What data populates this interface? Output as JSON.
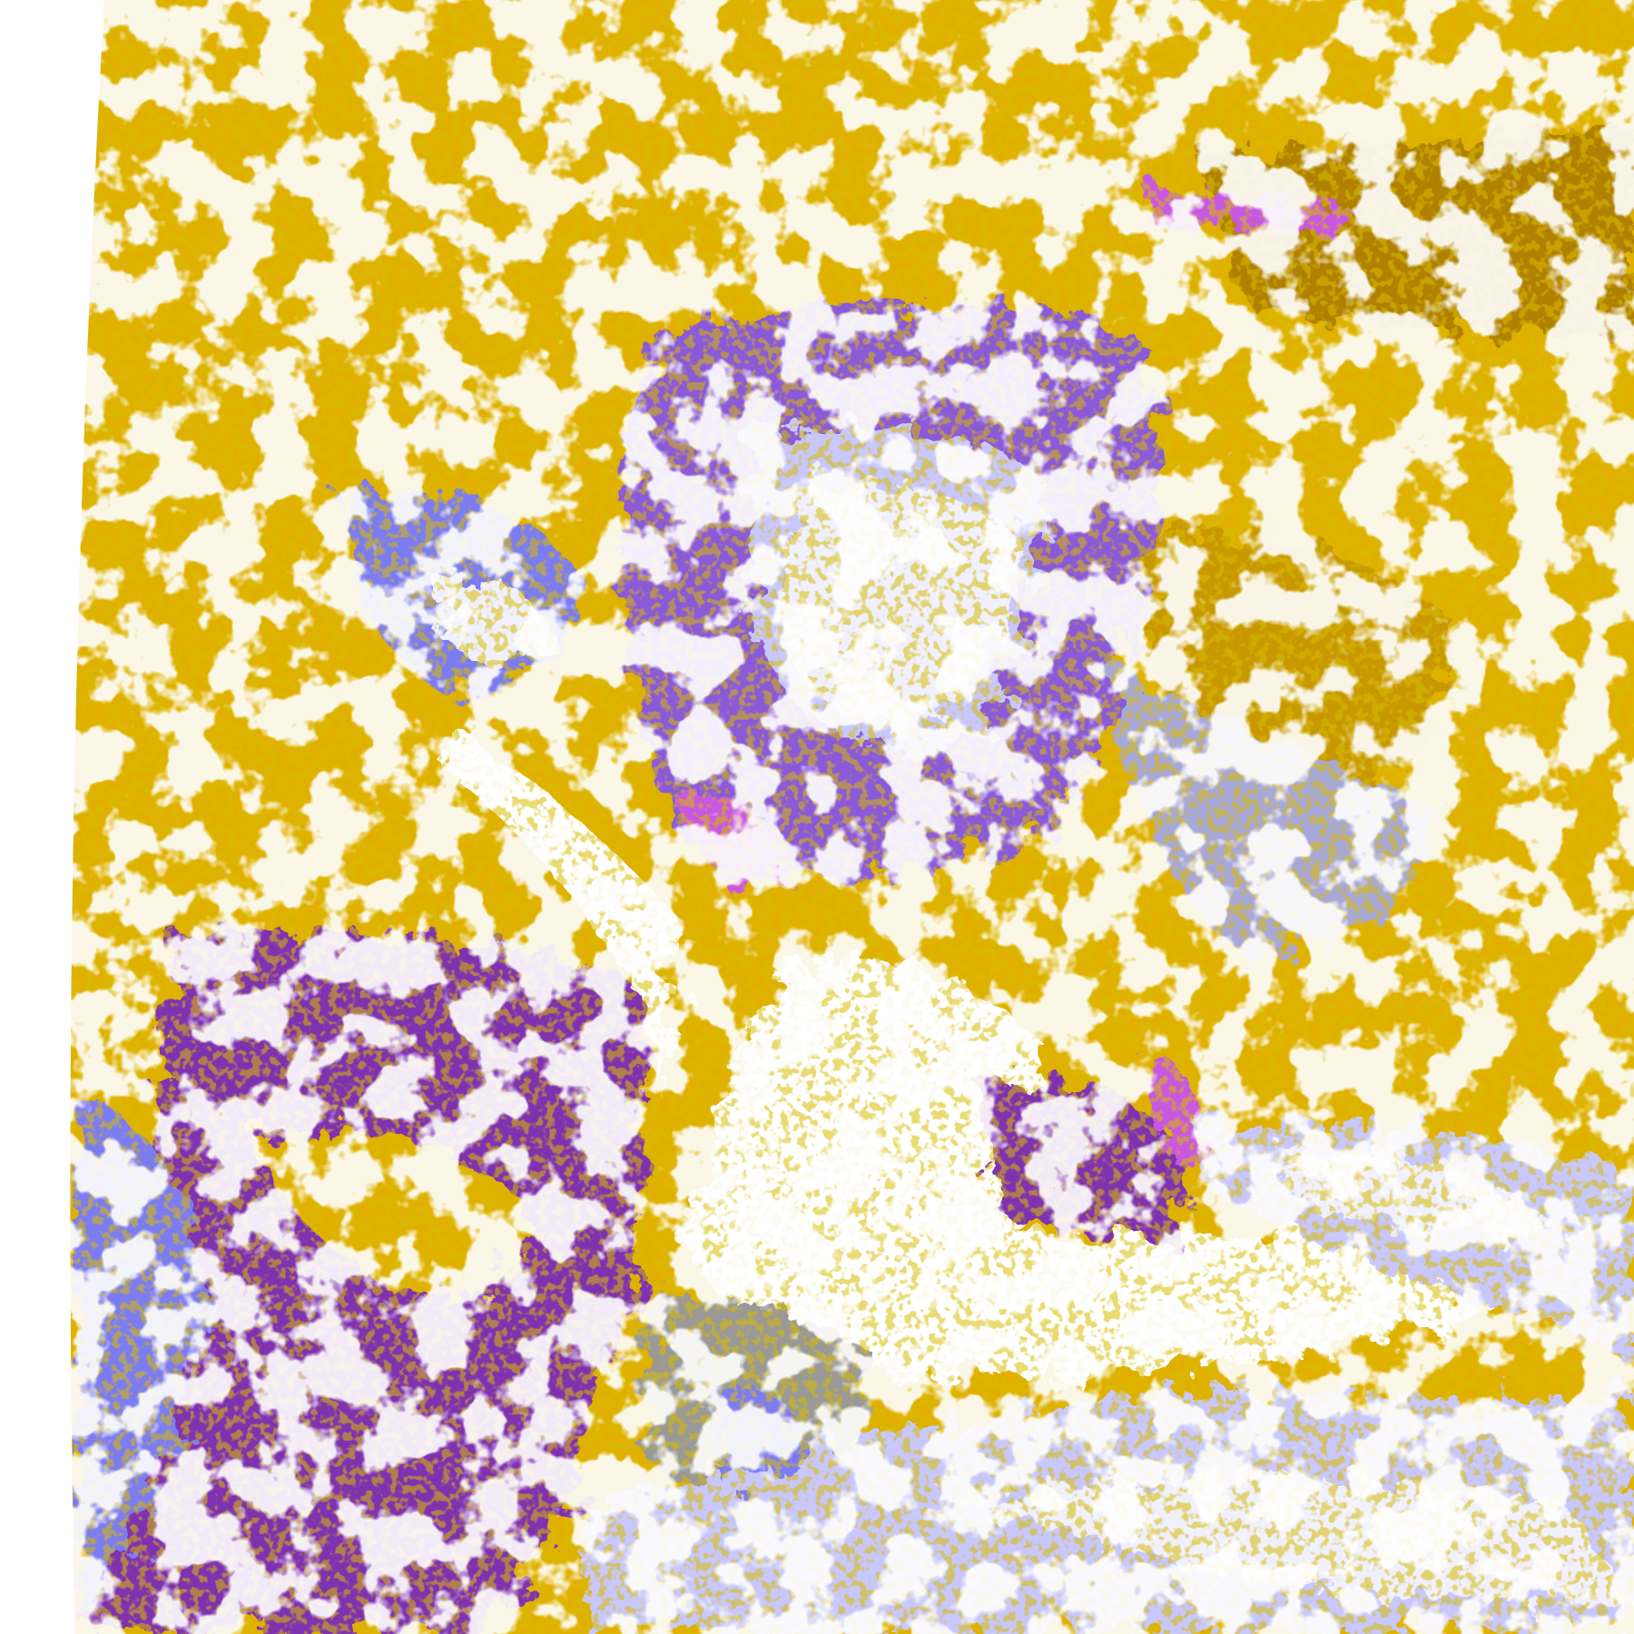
{
  "map": {
    "palette": {
      "background": "#ffffff",
      "gold": "#e0b000",
      "dark_gold": "#b08000",
      "purple": "#7f33b0",
      "blue_violet": "#7b7bf2",
      "magenta": "#c858e0",
      "lavender": "#c8c8ff",
      "pale": "#f0f0ff",
      "gray": "#999999"
    }
  }
}
